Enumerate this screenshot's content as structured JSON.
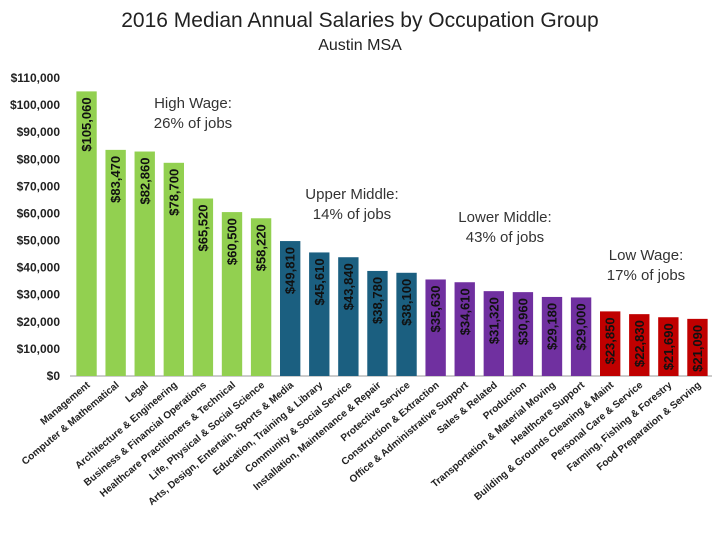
{
  "chart_data": {
    "type": "bar",
    "title": "2016 Median Annual Salaries by Occupation Group",
    "subtitle": "Austin MSA",
    "ylim": [
      0,
      110000
    ],
    "yticks": [
      "$0",
      "$10,000",
      "$20,000",
      "$30,000",
      "$40,000",
      "$50,000",
      "$60,000",
      "$70,000",
      "$80,000",
      "$90,000",
      "$100,000",
      "$110,000"
    ],
    "grid": false,
    "categories": [
      "Management",
      "Computer & Mathematical",
      "Legal",
      "Architecture & Engineering",
      "Business & Financial Operations",
      "Healthcare Practitioners & Technical",
      "Life, Physical & Social Science",
      "Arts, Design, Entertain, Sports & Media",
      "Education, Training & Library",
      "Community & Social Service",
      "Installation, Maintenance & Repair",
      "Protective Service",
      "Construction & Extraction",
      "Office & Administrative Support",
      "Sales & Related",
      "Production",
      "Transportation & Material Moving",
      "Healthcare Support",
      "Building & Grounds Cleaning & Maint",
      "Personal Care & Service",
      "Farming, Fishing & Forestry",
      "Food Preparation & Serving"
    ],
    "values": [
      105060,
      83470,
      82860,
      78700,
      65520,
      60500,
      58220,
      49810,
      45610,
      43840,
      38780,
      38100,
      35630,
      34610,
      31320,
      30960,
      29180,
      29000,
      23850,
      22830,
      21690,
      21090
    ],
    "data_labels": [
      "$105,060",
      "$83,470",
      "$82,860",
      "$78,700",
      "$65,520",
      "$60,500",
      "$58,220",
      "$49,810",
      "$45,610",
      "$43,840",
      "$38,780",
      "$38,100",
      "$35,630",
      "$34,610",
      "$31,320",
      "$30,960",
      "$29,180",
      "$29,000",
      "$23,850",
      "$22,830",
      "$21,690",
      "$21,090"
    ],
    "groups": [
      {
        "name": "High Wage",
        "share": "26% of jobs",
        "color": "#92d050",
        "label_color": "#111111",
        "count": 7
      },
      {
        "name": "Upper Middle",
        "share": "14% of jobs",
        "color": "#1b5f80",
        "label_color": "#ffffff",
        "count": 5
      },
      {
        "name": "Lower Middle",
        "share": "43% of jobs",
        "color": "#7030a0",
        "label_color": "#ffffff",
        "count": 6
      },
      {
        "name": "Low Wage",
        "share": "17% of jobs",
        "color": "#c00000",
        "label_color": "#ffffff",
        "count": 4
      }
    ]
  }
}
